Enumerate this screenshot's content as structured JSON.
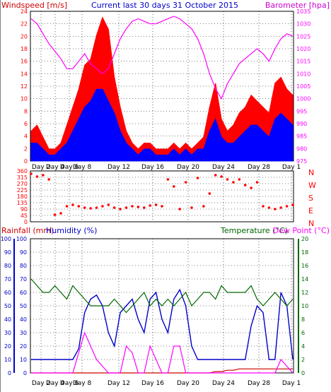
{
  "header": {
    "left_title": "Windspeed [m/s]",
    "center_title": "Current last 30 days 31 October 2015",
    "right_title": "Barometer [hpa]"
  },
  "x_ticks": [
    "Day 2",
    "Day 4",
    "Day 6",
    "Day 8",
    "Day 12",
    "Day 16",
    "Day 20",
    "Day 24",
    "Day 28",
    "Day 1"
  ],
  "wind_panel": {
    "y_left_ticks": [
      "0",
      "2",
      "4",
      "6",
      "8",
      "10",
      "12",
      "14",
      "16",
      "18",
      "20",
      "22",
      "24"
    ],
    "y_right_ticks": [
      "975",
      "980",
      "985",
      "990",
      "995",
      "1000",
      "1005",
      "1010",
      "1015",
      "1020",
      "1025",
      "1030",
      "1035"
    ]
  },
  "direction_panel": {
    "y_left_ticks": [
      "0",
      "45",
      "90",
      "135",
      "180",
      "225",
      "270",
      "315",
      "360"
    ],
    "compass_labels": [
      "N",
      "W",
      "S",
      "E",
      "N"
    ]
  },
  "lower_panel": {
    "left_title_rain": "Rainfall (mm)",
    "left_title_humidity": "Humidity (%)",
    "right_title_temp": "Temperature (°C)",
    "right_title_dew": "Dew Point (°C)",
    "y_rain_ticks": [
      "0",
      "10",
      "20",
      "30",
      "40",
      "50",
      "60",
      "70",
      "80",
      "90",
      "100"
    ],
    "y_hum_ticks": [
      "0",
      "10",
      "20",
      "30",
      "40",
      "50",
      "60",
      "70",
      "80",
      "90",
      "100"
    ],
    "y_temp_ticks": [
      "0",
      "2",
      "4",
      "6",
      "8",
      "10",
      "12",
      "14",
      "16",
      "18",
      "20"
    ]
  },
  "colors": {
    "wind_gust": "#ff0000",
    "wind_avg": "#0000ff",
    "barometer": "#ff00ff",
    "direction": "#ff0000",
    "rain": "#cc0000",
    "humidity": "#0000cc",
    "temperature": "#006600",
    "dew_point": "#ff00ff",
    "left_title": "#cc0000",
    "center_title": "#0000cc",
    "right_title_baro": "#cc00cc",
    "temp_axis": "#006600"
  },
  "chart_data": [
    {
      "type": "area",
      "ylim": [
        0,
        25
      ],
      "y2lim": [
        975,
        1035
      ],
      "series": [
        {
          "values": [
            5,
            6,
            4,
            2,
            2,
            3,
            6,
            9,
            12,
            16,
            17,
            21,
            24,
            22,
            14,
            9,
            5,
            3,
            2,
            3,
            3,
            2,
            2,
            2,
            3,
            2,
            3,
            2,
            3,
            4,
            9,
            13,
            7,
            5,
            6,
            8,
            9,
            11,
            10,
            9,
            8,
            13,
            14,
            12,
            11
          ]
        },
        {
          "values": [
            3,
            3,
            2,
            1,
            1,
            2,
            3,
            5,
            7,
            9,
            10,
            12,
            12,
            10,
            8,
            5,
            3,
            2,
            1,
            2,
            2,
            1,
            1,
            1,
            2,
            1,
            2,
            1,
            2,
            2,
            5,
            7,
            4,
            3,
            3,
            4,
            5,
            6,
            6,
            5,
            4,
            7,
            8,
            7,
            6
          ]
        },
        {
          "values": [
            1032,
            1030,
            1026,
            1022,
            1019,
            1016,
            1012,
            1012,
            1015,
            1018,
            1014,
            1012,
            1010,
            1012,
            1018,
            1024,
            1028,
            1031,
            1032,
            1031,
            1030,
            1030,
            1031,
            1032,
            1033,
            1032,
            1030,
            1028,
            1024,
            1018,
            1010,
            1004,
            1000,
            1006,
            1010,
            1014,
            1016,
            1018,
            1020,
            1018,
            1015,
            1020,
            1024,
            1026,
            1025
          ]
        }
      ]
    },
    {
      "type": "scatter",
      "ylim": [
        0,
        360
      ],
      "series": [
        {
          "values": [
            340,
            320,
            330,
            300,
            50,
            60,
            110,
            120,
            110,
            100,
            95,
            100,
            110,
            120,
            100,
            90,
            100,
            110,
            105,
            100,
            115,
            120,
            110,
            300,
            250,
            90,
            280,
            100,
            310,
            110,
            200,
            330,
            320,
            300,
            280,
            300,
            260,
            240,
            280,
            110,
            100,
            90,
            100,
            110,
            120
          ]
        }
      ]
    },
    {
      "type": "line",
      "ylim": [
        0,
        100
      ],
      "y2lim": [
        0,
        20
      ],
      "series": [
        {
          "values": [
            0,
            0,
            0,
            0,
            0,
            0,
            0,
            0,
            0,
            0,
            0,
            0,
            0,
            0,
            0,
            0,
            0,
            0,
            0,
            0,
            0,
            0,
            0,
            0,
            0,
            0,
            0,
            0,
            0,
            0,
            0,
            1,
            1,
            2,
            2,
            3,
            3,
            3,
            3,
            3,
            3,
            3,
            3,
            3,
            3
          ]
        },
        {
          "values": [
            10,
            10,
            10,
            10,
            10,
            10,
            10,
            10,
            18,
            45,
            55,
            58,
            50,
            30,
            20,
            45,
            50,
            55,
            40,
            30,
            55,
            60,
            40,
            30,
            55,
            62,
            50,
            20,
            10,
            10,
            10,
            10,
            10,
            10,
            10,
            10,
            10,
            35,
            50,
            45,
            10,
            10,
            60,
            50,
            10
          ]
        },
        {
          "values": [
            14,
            13,
            12,
            12,
            13,
            12,
            11,
            13,
            12,
            11,
            10,
            10,
            10,
            10,
            11,
            10,
            9,
            10,
            11,
            12,
            10,
            11,
            10,
            11,
            10,
            11,
            12,
            10,
            11,
            12,
            12,
            11,
            13,
            12,
            12,
            12,
            12,
            13,
            11,
            10,
            11,
            12,
            11,
            10,
            11
          ]
        },
        {
          "values": [
            0,
            0,
            0,
            0,
            0,
            0,
            0,
            0,
            3,
            6,
            4,
            2,
            1,
            0,
            0,
            0,
            4,
            3,
            0,
            0,
            4,
            2,
            0,
            0,
            4,
            4,
            0,
            0,
            0,
            0,
            0,
            0,
            0,
            0,
            0,
            0,
            0,
            0,
            0,
            0,
            0,
            0,
            2,
            1,
            0
          ]
        }
      ]
    }
  ]
}
